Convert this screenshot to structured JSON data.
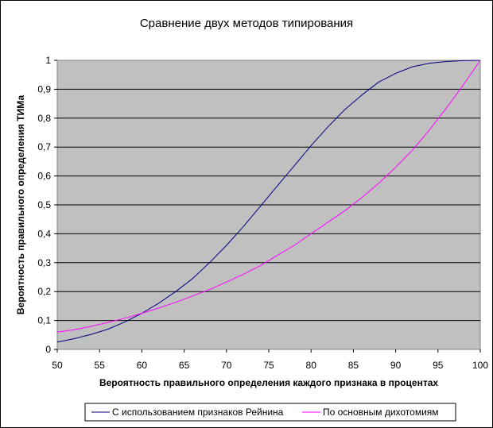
{
  "chart_data": {
    "type": "line",
    "title": "Сравнение двух методов типирования",
    "xlabel": "Вероятность правильного  определения каждого признака в процентах",
    "ylabel": "Вероятность правильного определения ТИМа",
    "xlim": [
      50,
      100
    ],
    "ylim": [
      0,
      1
    ],
    "x_ticks": [
      "50",
      "55",
      "60",
      "65",
      "70",
      "75",
      "80",
      "85",
      "90",
      "95",
      "100"
    ],
    "y_ticks": [
      "0",
      "0,1",
      "0,2",
      "0,3",
      "0,4",
      "0,5",
      "0,6",
      "0,7",
      "0,8",
      "0,9",
      "1"
    ],
    "grid": "horizontal",
    "legend_position": "bottom",
    "plot_background": "#C0C0C0",
    "x": [
      50,
      52,
      54,
      56,
      58,
      60,
      62,
      64,
      66,
      68,
      70,
      72,
      74,
      76,
      78,
      80,
      82,
      84,
      86,
      88,
      90,
      92,
      94,
      96,
      98,
      100
    ],
    "series": [
      {
        "name": "С использованием признаков Рейнина",
        "color": "#000080",
        "values": [
          0.025,
          0.037,
          0.052,
          0.07,
          0.095,
          0.125,
          0.16,
          0.2,
          0.245,
          0.3,
          0.36,
          0.425,
          0.495,
          0.565,
          0.635,
          0.705,
          0.77,
          0.83,
          0.88,
          0.925,
          0.955,
          0.978,
          0.99,
          0.996,
          0.999,
          1.0
        ]
      },
      {
        "name": "По основным дихотомиям",
        "color": "#FF00FF",
        "values": [
          0.06,
          0.068,
          0.08,
          0.093,
          0.108,
          0.125,
          0.143,
          0.163,
          0.185,
          0.207,
          0.233,
          0.26,
          0.29,
          0.325,
          0.36,
          0.4,
          0.44,
          0.48,
          0.525,
          0.575,
          0.63,
          0.69,
          0.76,
          0.835,
          0.915,
          1.0
        ]
      }
    ]
  }
}
